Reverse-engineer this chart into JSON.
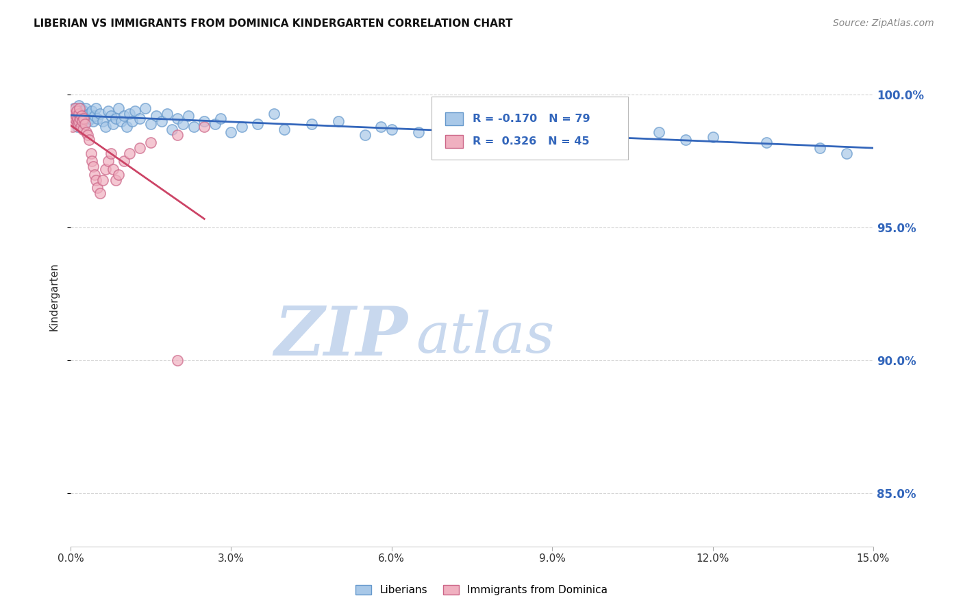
{
  "title": "LIBERIAN VS IMMIGRANTS FROM DOMINICA KINDERGARTEN CORRELATION CHART",
  "source": "Source: ZipAtlas.com",
  "ylabel": "Kindergarten",
  "xlim": [
    0.0,
    15.0
  ],
  "ylim": [
    83.0,
    101.8
  ],
  "xtick_positions": [
    0.0,
    3.0,
    6.0,
    9.0,
    12.0,
    15.0
  ],
  "xtick_labels": [
    "0.0%",
    "3.0%",
    "6.0%",
    "9.0%",
    "12.0%",
    "15.0%"
  ],
  "ytick_positions": [
    85.0,
    90.0,
    95.0,
    100.0
  ],
  "ytick_labels": [
    "85.0%",
    "90.0%",
    "95.0%",
    "100.0%"
  ],
  "blue_R": -0.17,
  "blue_N": 79,
  "pink_R": 0.326,
  "pink_N": 45,
  "blue_marker_color": "#A8C8E8",
  "blue_edge_color": "#6699CC",
  "pink_marker_color": "#F0B0C0",
  "pink_edge_color": "#CC6688",
  "blue_line_color": "#3366BB",
  "pink_line_color": "#CC4466",
  "watermark_zip": "ZIP",
  "watermark_atlas": "atlas",
  "watermark_color_zip": "#C8D8EE",
  "watermark_color_atlas": "#C8D8EE",
  "legend_label_blue": "Liberians",
  "legend_label_pink": "Immigrants from Dominica",
  "grid_color": "#CCCCCC",
  "background_color": "#FFFFFF"
}
